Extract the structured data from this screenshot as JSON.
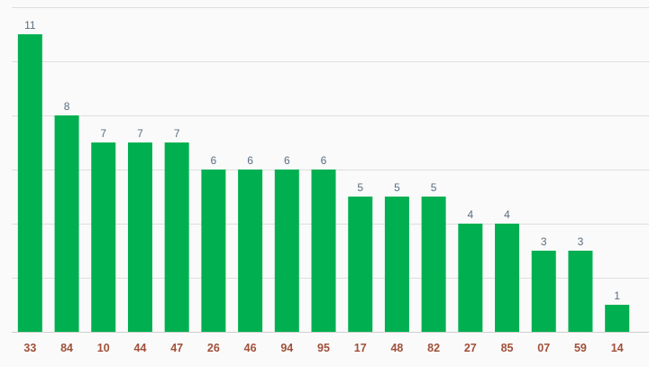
{
  "chart_data": {
    "type": "bar",
    "categories": [
      "33",
      "84",
      "10",
      "44",
      "47",
      "26",
      "46",
      "94",
      "95",
      "17",
      "48",
      "82",
      "27",
      "85",
      "07",
      "59",
      "14"
    ],
    "values": [
      11,
      8,
      7,
      7,
      7,
      6,
      6,
      6,
      6,
      5,
      5,
      5,
      4,
      4,
      3,
      3,
      1
    ],
    "ylim": [
      0,
      12
    ],
    "grid": true,
    "data_labels": true,
    "legend": "none",
    "colors": {
      "bar": "#00b050",
      "tick_label": "#a0503a",
      "value_label": "#5a6e80",
      "grid": "#dedede",
      "background": "#fafafa"
    }
  }
}
